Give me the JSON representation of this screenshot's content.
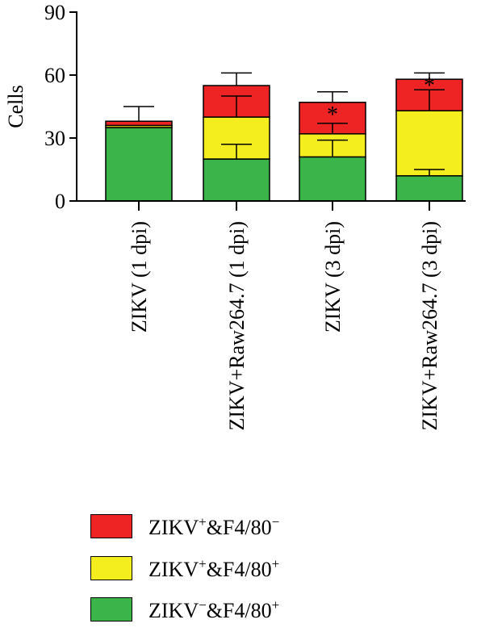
{
  "chart_data": {
    "type": "bar",
    "stacked": true,
    "ylabel": "Cells",
    "ylim": [
      0,
      90
    ],
    "yticks": [
      "0",
      "30",
      "60",
      "90"
    ],
    "categories": [
      "ZIKV (1 dpi)",
      "ZIKV+Raw264.7 (1 dpi)",
      "ZIKV (3 dpi)",
      "ZIKV+Raw264.7 (3 dpi)"
    ],
    "series": [
      {
        "name": "ZIKV⁻&F4/80⁺",
        "color": "#3bb54a",
        "values": [
          35,
          20,
          21,
          12
        ],
        "error_top": [
          null,
          27,
          29,
          15
        ]
      },
      {
        "name": "ZIKV⁺&F4/80⁺",
        "color": "#f5ee1e",
        "values": [
          1,
          20,
          11,
          31
        ],
        "error_top": [
          null,
          50,
          37,
          53
        ]
      },
      {
        "name": "ZIKV⁺&F4/80⁻",
        "color": "#ee2424",
        "values": [
          2,
          15,
          15,
          15
        ],
        "error_top": [
          45,
          61,
          52,
          61
        ]
      }
    ],
    "annotations": [
      "",
      "",
      "*",
      "*"
    ],
    "legend": {
      "placement": "bottom",
      "items": [
        {
          "base": "ZIKV",
          "sup": "+",
          "mid": "&F4/80",
          "sup2": "−",
          "color": "#ee2424"
        },
        {
          "base": "ZIKV",
          "sup": "+",
          "mid": "&F4/80",
          "sup2": "+",
          "color": "#f5ee1e"
        },
        {
          "base": "ZIKV",
          "sup": "−",
          "mid": "&F4/80",
          "sup2": "+",
          "color": "#3bb54a"
        }
      ]
    }
  }
}
